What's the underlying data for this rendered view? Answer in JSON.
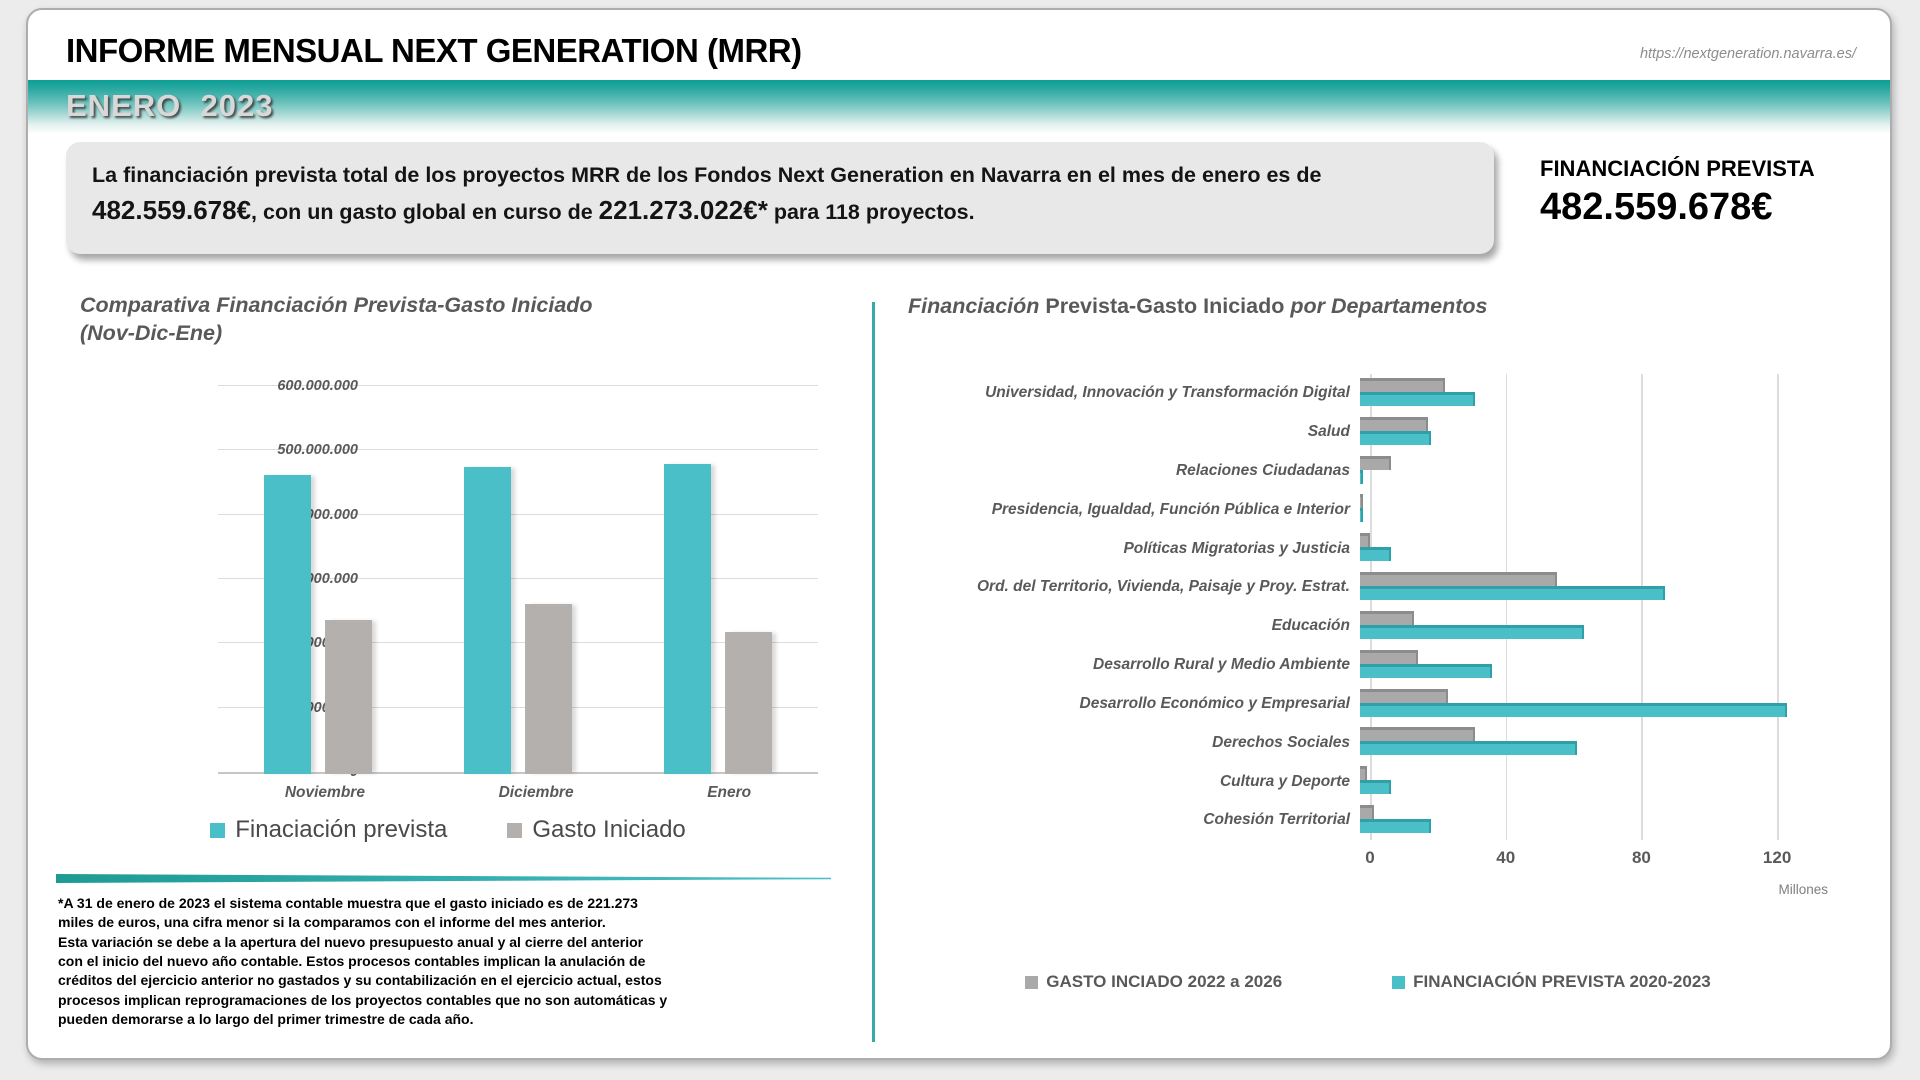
{
  "header": {
    "title": "INFORME MENSUAL NEXT GENERATION (MRR)",
    "url": "https://nextgeneration.navarra.es/",
    "period": "ENERO  2023"
  },
  "summary": {
    "segments": [
      {
        "text": "La financiación prevista total de los proyectos MRR de los Fondos Next Generation en Navarra en el mes de enero es de ",
        "strong": false
      },
      {
        "text": "482.559.678€",
        "strong": true
      },
      {
        "text": ", con un gasto global en curso de ",
        "strong": false
      },
      {
        "text": "221.273.022€*",
        "strong": true
      },
      {
        "text": " para 118  proyectos.",
        "strong": false
      }
    ]
  },
  "highlight": {
    "label": "FINANCIACIÓN PREVISTA",
    "value": "482.559.678€"
  },
  "footnote": {
    "lines": [
      "*A 31 de enero de 2023 el sistema contable muestra que el gasto iniciado es de 221.273",
      "miles de euros, una cifra menor si la comparamos con el informe del mes anterior.",
      "Esta variación se debe a la apertura del nuevo presupuesto anual y al cierre del anterior",
      "con el inicio del nuevo año contable. Estos procesos contables implican la anulación de",
      "créditos del ejercicio anterior no gastados y su contabilización en el ejercicio actual, estos",
      "procesos implican reprogramaciones de los proyectos contables que no son automáticas y",
      "pueden demorarse a lo largo del primer trimestre de cada año."
    ]
  },
  "colors": {
    "teal": "#4BBFC8",
    "gray_left": "#B3B0AE",
    "gray_right": "#A9A9A9",
    "band_teal": "#0B9E94"
  },
  "chart_data": [
    {
      "id": "comparativa",
      "type": "bar",
      "title": "Comparativa Financiación Prevista-Gasto Iniciado\n(Nov-Dic-Ene)",
      "categories": [
        "Noviembre",
        "Diciembre",
        "Enero"
      ],
      "series": [
        {
          "name": "Finaciación prevista",
          "color": "#4BBFC8",
          "values": [
            465000000,
            477000000,
            482559678
          ]
        },
        {
          "name": "Gasto Iniciado",
          "color": "#B3B0AE",
          "values": [
            240000000,
            265000000,
            221273022
          ]
        }
      ],
      "ylim": [
        0,
        600000000
      ],
      "ytick_step": 100000000,
      "grid": true,
      "legend_position": "bottom"
    },
    {
      "id": "departamentos",
      "type": "bar-horizontal",
      "title_segments": [
        {
          "text": "Financiación ",
          "italic": true
        },
        {
          "text": "Prevista-Gasto Iniciado ",
          "italic": false
        },
        {
          "text": "por ",
          "italic": true
        },
        {
          "text": "Departamentos",
          "italic": true
        }
      ],
      "categories": [
        "Universidad, Innovación y Transformación Digital",
        "Salud",
        "Relaciones Ciudadanas",
        "Presidencia, Igualdad, Función Pública e Interior",
        "Políticas Migratorias y Justicia",
        "Ord. del Territorio, Vivienda, Paisaje y Proy. Estrat.",
        "Educación",
        "Desarrollo Rural y Medio Ambiente",
        "Desarrollo Económico y Empresarial",
        "Derechos Sociales",
        "Cultura y Deporte",
        "Cohesión Territorial"
      ],
      "series": [
        {
          "name": "GASTO INCIADO 2022 a 2026",
          "color": "#A9A9A9",
          "values_millions": [
            25,
            20,
            9,
            1,
            3,
            58,
            16,
            17,
            26,
            34,
            2,
            4
          ]
        },
        {
          "name": "FINANCIACIÓN PREVISTA 2020-2023",
          "color": "#4BBFC8",
          "values_millions": [
            34,
            21,
            1,
            1,
            9,
            90,
            66,
            39,
            126,
            64,
            9,
            21
          ]
        }
      ],
      "xlim_millions": [
        0,
        135
      ],
      "xticks_millions": [
        0,
        40,
        80,
        120
      ],
      "axis_unit": "Millones",
      "grid": true,
      "legend_position": "bottom"
    }
  ]
}
